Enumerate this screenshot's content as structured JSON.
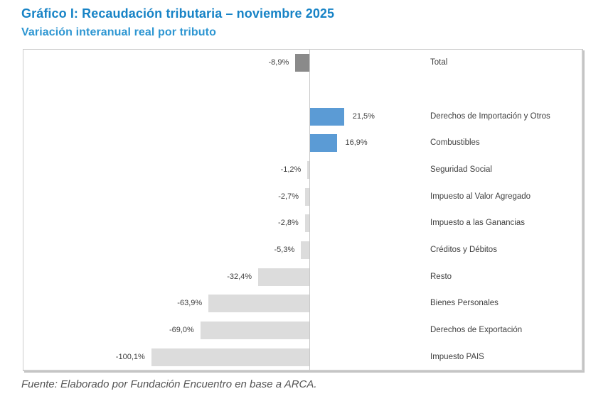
{
  "chart_data": {
    "type": "bar",
    "orientation": "horizontal",
    "title": "Gráfico I: Recaudación tributaria – noviembre 2025",
    "subtitle": "Variación interanual real por tributo",
    "source": "Fuente: Elaborado por Fundación Encuentro en base a ARCA.",
    "value_suffix": "%",
    "xlim": [
      -110,
      30
    ],
    "grid": false,
    "legend": "none",
    "categories": [
      "Total",
      "",
      "Derechos de Importación y Otros",
      "Combustibles",
      "Seguridad Social",
      "Impuesto al Valor Agregado",
      "Impuesto a las Ganancias",
      "Créditos y Débitos",
      "Resto",
      "Bienes Personales",
      "Derechos de Exportación",
      "Impuesto PAIS"
    ],
    "series": [
      {
        "label": "Total",
        "value": -8.9,
        "display": "-8,9%",
        "color": "#8a8a8a"
      },
      {
        "label": "",
        "value": null,
        "display": "",
        "spacer": true,
        "color": ""
      },
      {
        "label": "Derechos de Importación y Otros",
        "value": 21.5,
        "display": "21,5%",
        "color": "#5b9bd5"
      },
      {
        "label": "Combustibles",
        "value": 16.9,
        "display": "16,9%",
        "color": "#5b9bd5"
      },
      {
        "label": "Seguridad Social",
        "value": -1.2,
        "display": "-1,2%",
        "color": "#dcdcdc"
      },
      {
        "label": "Impuesto al Valor Agregado",
        "value": -2.7,
        "display": "-2,7%",
        "color": "#dcdcdc"
      },
      {
        "label": "Impuesto a las Ganancias",
        "value": -2.8,
        "display": "-2,8%",
        "color": "#dcdcdc"
      },
      {
        "label": "Créditos y Débitos",
        "value": -5.3,
        "display": "-5,3%",
        "color": "#dcdcdc"
      },
      {
        "label": "Resto",
        "value": -32.4,
        "display": "-32,4%",
        "color": "#dcdcdc"
      },
      {
        "label": "Bienes Personales",
        "value": -63.9,
        "display": "-63,9%",
        "color": "#dcdcdc"
      },
      {
        "label": "Derechos de Exportación",
        "value": -69.0,
        "display": "-69,0%",
        "color": "#dcdcdc"
      },
      {
        "label": "Impuesto PAIS",
        "value": -100.1,
        "display": "-100,1%",
        "color": "#dcdcdc"
      }
    ],
    "colors": {
      "title": "#1783c6",
      "subtitle": "#2d96d2",
      "bar_positive": "#5b9bd5",
      "bar_total": "#8a8a8a",
      "bar_negative": "#dcdcdc",
      "axis": "#c9c9c9",
      "label_text": "#3f3f3f"
    }
  }
}
